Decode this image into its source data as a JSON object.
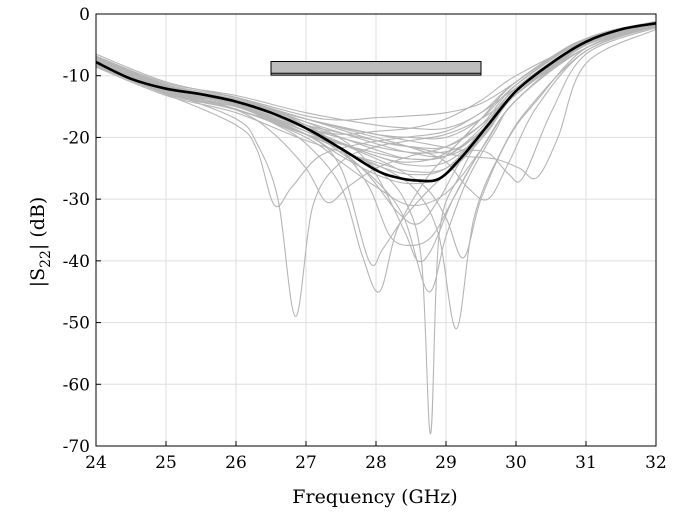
{
  "chart_data": {
    "type": "line",
    "title": "",
    "xlabel": "Frequency (GHz)",
    "ylabel": {
      "pre": "|S",
      "sub": "22",
      "post": "| (dB)"
    },
    "xlim": [
      24,
      32
    ],
    "ylim": [
      -70,
      0
    ],
    "xticks": [
      24,
      25,
      26,
      27,
      28,
      29,
      30,
      31,
      32
    ],
    "yticks": [
      0,
      -10,
      -20,
      -30,
      -40,
      -50,
      -60,
      -70
    ],
    "grid": true,
    "band": {
      "x_start": 26.5,
      "x_end": 29.5,
      "y_top": -7.7,
      "y_mid": -9.6,
      "y_bottom": -9.9
    },
    "colors": {
      "mean": "#000000",
      "samples": "#b5b5b5",
      "band_fill": "#bdbdbd",
      "grid": "#dedede"
    },
    "mean_series": {
      "name": "",
      "x": [
        24,
        24.5,
        25,
        25.5,
        26,
        26.5,
        27,
        27.5,
        28,
        28.3,
        28.6,
        28.9,
        29.2,
        29.6,
        30,
        30.5,
        31,
        31.5,
        32
      ],
      "y": [
        -7.8,
        -10.5,
        -12.1,
        -13.0,
        -14.2,
        -16.0,
        -18.5,
        -21.8,
        -25.3,
        -26.5,
        -27.0,
        -26.7,
        -23.5,
        -18.0,
        -12.5,
        -8.0,
        -4.5,
        -2.5,
        -1.5
      ]
    },
    "sample_series": [
      {
        "x": [
          24,
          25,
          26,
          27,
          27.5,
          28,
          28.5,
          29,
          29.5,
          30,
          30.5,
          31,
          32
        ],
        "y": [
          -6.5,
          -11,
          -13.5,
          -16.5,
          -17.2,
          -16.8,
          -16.5,
          -16,
          -14.5,
          -11,
          -7,
          -4,
          -1.2
        ]
      },
      {
        "x": [
          24,
          25,
          26,
          26.5,
          27,
          27.5,
          28,
          28.5,
          29,
          29.5,
          30,
          31,
          32
        ],
        "y": [
          -7,
          -11.5,
          -14,
          -16,
          -18.5,
          -19.5,
          -19,
          -18.5,
          -17,
          -14,
          -10,
          -4.5,
          -1.5
        ]
      },
      {
        "x": [
          24,
          25,
          26,
          26.3,
          26.6,
          26.85,
          27.1,
          27.5,
          28,
          28.5,
          29,
          29.5,
          30,
          31,
          32
        ],
        "y": [
          -8,
          -12.5,
          -17,
          -21,
          -30,
          -49,
          -31,
          -24,
          -21.5,
          -20.5,
          -19.5,
          -17,
          -13,
          -5,
          -2
        ]
      },
      {
        "x": [
          24,
          25,
          26,
          26.3,
          26.55,
          26.8,
          27.2,
          27.8,
          28.4,
          29,
          29.5,
          30,
          31,
          32
        ],
        "y": [
          -8.5,
          -13,
          -18,
          -22,
          -31,
          -28,
          -23,
          -21,
          -20,
          -19,
          -16,
          -12,
          -5,
          -2
        ]
      },
      {
        "x": [
          24,
          25,
          26,
          26.5,
          27,
          27.3,
          27.6,
          28,
          28.5,
          29,
          29.5,
          30,
          31,
          32
        ],
        "y": [
          -7.5,
          -12,
          -15.5,
          -19,
          -25,
          -30.5,
          -28,
          -25,
          -23,
          -21.5,
          -18,
          -13,
          -5,
          -1.8
        ]
      },
      {
        "x": [
          24,
          25,
          26,
          26.5,
          27,
          27.5,
          27.8,
          28.05,
          28.3,
          28.7,
          29,
          29.5,
          30,
          31,
          32
        ],
        "y": [
          -8,
          -12.5,
          -15,
          -17.5,
          -21,
          -28,
          -39,
          -45,
          -35,
          -27,
          -23,
          -17,
          -11,
          -4,
          -1.5
        ]
      },
      {
        "x": [
          24,
          25,
          26,
          27,
          27.5,
          27.9,
          28.1,
          28.4,
          28.8,
          29.2,
          29.6,
          30,
          31,
          32
        ],
        "y": [
          -8.2,
          -13,
          -15.5,
          -19.5,
          -25,
          -40,
          -38,
          -33,
          -28,
          -24,
          -19,
          -13,
          -5,
          -2
        ]
      },
      {
        "x": [
          24,
          25,
          26,
          27,
          27.5,
          27.9,
          28.2,
          28.5,
          28.8,
          29.1,
          29.5,
          30,
          31,
          32
        ],
        "y": [
          -7.8,
          -12.5,
          -14.5,
          -18,
          -22,
          -28,
          -36,
          -37.5,
          -36,
          -30,
          -22,
          -14,
          -5.5,
          -2
        ]
      },
      {
        "x": [
          24,
          25,
          26,
          27,
          27.6,
          28,
          28.4,
          28.6,
          28.8,
          29.1,
          29.5,
          30,
          31,
          32
        ],
        "y": [
          -7.2,
          -11.8,
          -14,
          -17.5,
          -21,
          -26,
          -35,
          -40,
          -38,
          -30,
          -22,
          -14,
          -5,
          -1.8
        ]
      },
      {
        "x": [
          24,
          25,
          26,
          27,
          27.6,
          28,
          28.4,
          28.65,
          28.78,
          28.9,
          29.2,
          29.6,
          30,
          31,
          32
        ],
        "y": [
          -8.1,
          -12.6,
          -15,
          -19.5,
          -22.5,
          -25,
          -30,
          -40,
          -68,
          -36,
          -26,
          -18,
          -12,
          -4.5,
          -1.5
        ]
      },
      {
        "x": [
          24,
          25,
          26,
          27,
          27.5,
          28,
          28.4,
          28.75,
          29,
          29.3,
          29.7,
          30,
          31,
          32
        ],
        "y": [
          -7.6,
          -12.2,
          -14.8,
          -19,
          -22.5,
          -27,
          -33,
          -45,
          -36,
          -27,
          -19,
          -14,
          -5,
          -1.7
        ]
      },
      {
        "x": [
          24,
          25,
          26,
          27,
          27.6,
          28.2,
          28.6,
          28.9,
          29.15,
          29.4,
          29.8,
          30.2,
          31,
          32
        ],
        "y": [
          -8.3,
          -12.8,
          -15.5,
          -19.5,
          -22.5,
          -25.5,
          -29,
          -36,
          -51,
          -33,
          -22,
          -15,
          -6,
          -2
        ]
      },
      {
        "x": [
          24,
          25,
          26,
          27,
          27.6,
          28.2,
          28.7,
          29,
          29.25,
          29.5,
          29.9,
          30.3,
          31,
          32
        ],
        "y": [
          -7.9,
          -12.4,
          -14.6,
          -18.5,
          -21.5,
          -24.5,
          -28,
          -33,
          -39.5,
          -30,
          -20,
          -14,
          -5.5,
          -1.8
        ]
      },
      {
        "x": [
          24,
          25,
          26,
          27,
          28,
          28.6,
          29,
          29.3,
          29.6,
          29.9,
          30.3,
          31,
          32
        ],
        "y": [
          -7.4,
          -11.9,
          -14,
          -17,
          -20,
          -22,
          -24,
          -28,
          -30,
          -24,
          -15,
          -6,
          -2
        ]
      },
      {
        "x": [
          24,
          25,
          26,
          27,
          28,
          28.7,
          29.2,
          29.6,
          29.9,
          30.1,
          30.5,
          31,
          32
        ],
        "y": [
          -7.7,
          -12.1,
          -14.2,
          -17,
          -19.5,
          -21,
          -22,
          -22.5,
          -26,
          -26.5,
          -16,
          -6.5,
          -2.2
        ]
      },
      {
        "x": [
          24,
          25,
          26,
          27,
          28,
          28.7,
          29.2,
          29.7,
          30.05,
          30.3,
          30.6,
          31,
          32
        ],
        "y": [
          -8.4,
          -12.9,
          -15,
          -18,
          -20.5,
          -22,
          -23,
          -23.5,
          -25,
          -26.5,
          -20,
          -8,
          -2.5
        ]
      },
      {
        "x": [
          24,
          25,
          26,
          27,
          27.8,
          28.3,
          28.6,
          28.9,
          29.2,
          29.6,
          30,
          31,
          32
        ],
        "y": [
          -7.3,
          -11.7,
          -14,
          -18,
          -25,
          -32,
          -34,
          -30,
          -24,
          -18,
          -12,
          -4.5,
          -1.5
        ]
      },
      {
        "x": [
          24,
          25,
          26,
          27,
          28,
          28.5,
          29,
          29.5,
          30,
          31,
          32
        ],
        "y": [
          -7.1,
          -11.6,
          -13.8,
          -17,
          -20.5,
          -21.5,
          -21.5,
          -18,
          -11.5,
          -4,
          -1.3
        ]
      },
      {
        "x": [
          24,
          25,
          26,
          27,
          28,
          28.5,
          29,
          29.5,
          30,
          31,
          32
        ],
        "y": [
          -8.0,
          -12.6,
          -15,
          -19,
          -23,
          -24.5,
          -24,
          -19.5,
          -13,
          -5,
          -1.8
        ]
      },
      {
        "x": [
          24,
          25,
          26,
          27,
          28,
          28.5,
          29,
          29.5,
          30,
          31,
          32
        ],
        "y": [
          -7.5,
          -12.0,
          -14.5,
          -18,
          -22,
          -23.5,
          -23,
          -18.5,
          -12,
          -4.5,
          -1.6
        ]
      },
      {
        "x": [
          24,
          25,
          26,
          27,
          27.5,
          28,
          28.5,
          29,
          29.5,
          30,
          31,
          32
        ],
        "y": [
          -7.9,
          -12.3,
          -14.8,
          -19.5,
          -23,
          -26,
          -27.5,
          -26,
          -20,
          -13,
          -5,
          -1.7
        ]
      },
      {
        "x": [
          24,
          25,
          26,
          27,
          27.5,
          28,
          28.5,
          29,
          29.5,
          30,
          31,
          32
        ],
        "y": [
          -8.2,
          -12.7,
          -15.4,
          -20,
          -24,
          -28,
          -31,
          -29,
          -22,
          -14,
          -5.5,
          -2
        ]
      },
      {
        "x": [
          24,
          25,
          26,
          27,
          28,
          28.5,
          29,
          29.5,
          30,
          31,
          32
        ],
        "y": [
          -6.8,
          -11.2,
          -13.2,
          -16,
          -18,
          -18.5,
          -18.5,
          -16,
          -11,
          -4,
          -1.2
        ]
      },
      {
        "x": [
          24,
          25,
          26,
          27,
          28,
          28.5,
          29,
          29.5,
          30,
          31,
          32
        ],
        "y": [
          -7.6,
          -12.0,
          -14.2,
          -17.5,
          -21,
          -22.5,
          -23,
          -20,
          -13,
          -4.5,
          -1.5
        ]
      },
      {
        "x": [
          24,
          25,
          26,
          27,
          28,
          28.5,
          29,
          29.5,
          30,
          31,
          32
        ],
        "y": [
          -8.6,
          -13.2,
          -16,
          -20.5,
          -24,
          -25.5,
          -25,
          -20,
          -13,
          -5,
          -2
        ]
      },
      {
        "x": [
          24,
          25,
          26,
          27,
          28,
          28.5,
          29,
          29.5,
          30,
          31,
          32
        ],
        "y": [
          -7.3,
          -11.8,
          -14,
          -18.5,
          -23,
          -24,
          -22.5,
          -17,
          -11,
          -4,
          -1.4
        ]
      },
      {
        "x": [
          24,
          25,
          26,
          27,
          28,
          28.6,
          29.1,
          29.5,
          30,
          31,
          32
        ],
        "y": [
          -8.1,
          -12.5,
          -15,
          -18.5,
          -21.5,
          -22.5,
          -22,
          -19,
          -13,
          -5.5,
          -2
        ]
      },
      {
        "x": [
          24,
          25,
          26,
          27,
          27.5,
          28,
          28.5,
          29,
          29.5,
          30,
          31,
          32
        ],
        "y": [
          -7.8,
          -12.2,
          -14.7,
          -19,
          -22,
          -24.5,
          -26,
          -25,
          -19,
          -12.5,
          -4.8,
          -1.7
        ]
      },
      {
        "x": [
          24,
          25,
          26,
          27,
          28,
          28.5,
          29,
          29.5,
          30,
          31,
          32
        ],
        "y": [
          -6.9,
          -11.4,
          -13.6,
          -17,
          -19.5,
          -20,
          -20,
          -17,
          -11.5,
          -4.2,
          -1.3
        ]
      },
      {
        "x": [
          24,
          25,
          26,
          27,
          28,
          28.5,
          29,
          29.5,
          30,
          31,
          32
        ],
        "y": [
          -8.3,
          -12.9,
          -15.5,
          -19.5,
          -22.5,
          -23.5,
          -23,
          -19,
          -12.5,
          -5,
          -1.9
        ]
      }
    ]
  }
}
